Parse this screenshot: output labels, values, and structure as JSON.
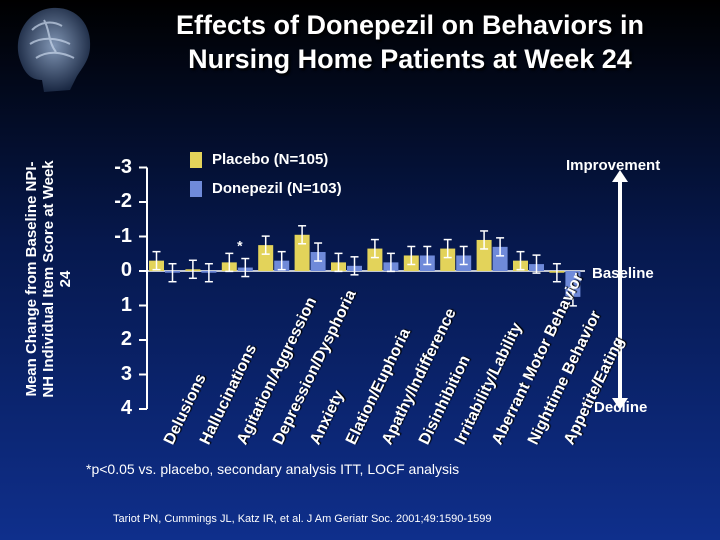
{
  "title_line1": "Effects of Donepezil on Behaviors in",
  "title_line2": "Nursing Home Patients at Week 24",
  "colors": {
    "placebo": "#e3d35a",
    "donepezil": "#6f8ad9",
    "axis": "#ffffff"
  },
  "legend": {
    "placebo": "Placebo (N=105)",
    "donepezil": "Donepezil (N=103)"
  },
  "labels": {
    "improvement": "Improvement",
    "baseline": "Baseline",
    "decline": "Decline"
  },
  "footnote": "*p<0.05 vs. placebo, secondary analysis ITT, LOCF analysis",
  "citation": "Tariot PN, Cummings JL, Katz IR, et al. J Am Geriatr Soc. 2001;49:1590-1599",
  "chart_data": {
    "type": "bar",
    "ylabel": "Mean Change from Baseline NPI-NH Individual Item Score at Week 24",
    "ylim": [
      -3,
      4
    ],
    "yticks": [
      "-3",
      "-2",
      "-1",
      "0",
      "1",
      "2",
      "3",
      "4"
    ],
    "categories": [
      "Delusions",
      "Hallucinations",
      "Agitation/Aggression",
      "Depression/Dysphoria",
      "Anxiety",
      "Elation/Euphoria",
      "Apathy/Indifference",
      "Disinhibition",
      "Irritability/Lability",
      "Aberrant Motor Behavior",
      "Nighttime Behavior",
      "Appetite/Eating"
    ],
    "series": [
      {
        "name": "Placebo (N=105)",
        "values": [
          -0.3,
          -0.05,
          -0.25,
          -0.75,
          -1.05,
          -0.25,
          -0.65,
          -0.45,
          -0.65,
          -0.9,
          -0.3,
          0.05
        ]
      },
      {
        "name": "Donepezil (N=103)",
        "values": [
          0.05,
          0.05,
          -0.1,
          -0.3,
          -0.55,
          -0.15,
          -0.25,
          -0.45,
          -0.45,
          -0.7,
          -0.2,
          0.75
        ]
      }
    ],
    "significance": [
      {
        "category": "Agitation/Aggression",
        "marker": "*"
      }
    ]
  }
}
